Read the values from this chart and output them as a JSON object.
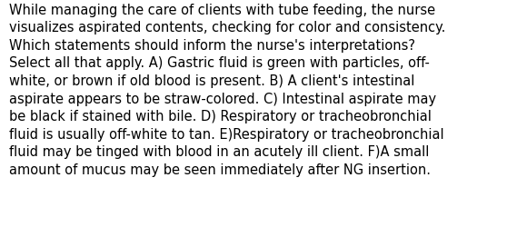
{
  "text_lines": [
    "While managing the care of clients with tube feeding, the nurse",
    "visualizes aspirated contents, checking for color and consistency.",
    "Which statements should inform the nurse's interpretations?",
    "Select all that apply. A) Gastric fluid is green with particles, off-",
    "white, or brown if old blood is present. B) A client's intestinal",
    "aspirate appears to be straw-colored. C) Intestinal aspirate may",
    "be black if stained with bile. D) Respiratory or tracheobronchial",
    "fluid is usually off-white to tan. E)Respiratory or tracheobronchial",
    "fluid may be tinged with blood in an acutely ill client. F)A small",
    "amount of mucus may be seen immediately after NG insertion."
  ],
  "background_color": "#ffffff",
  "text_color": "#000000",
  "font_size": 10.5,
  "fig_width": 5.58,
  "fig_height": 2.51,
  "dpi": 100
}
